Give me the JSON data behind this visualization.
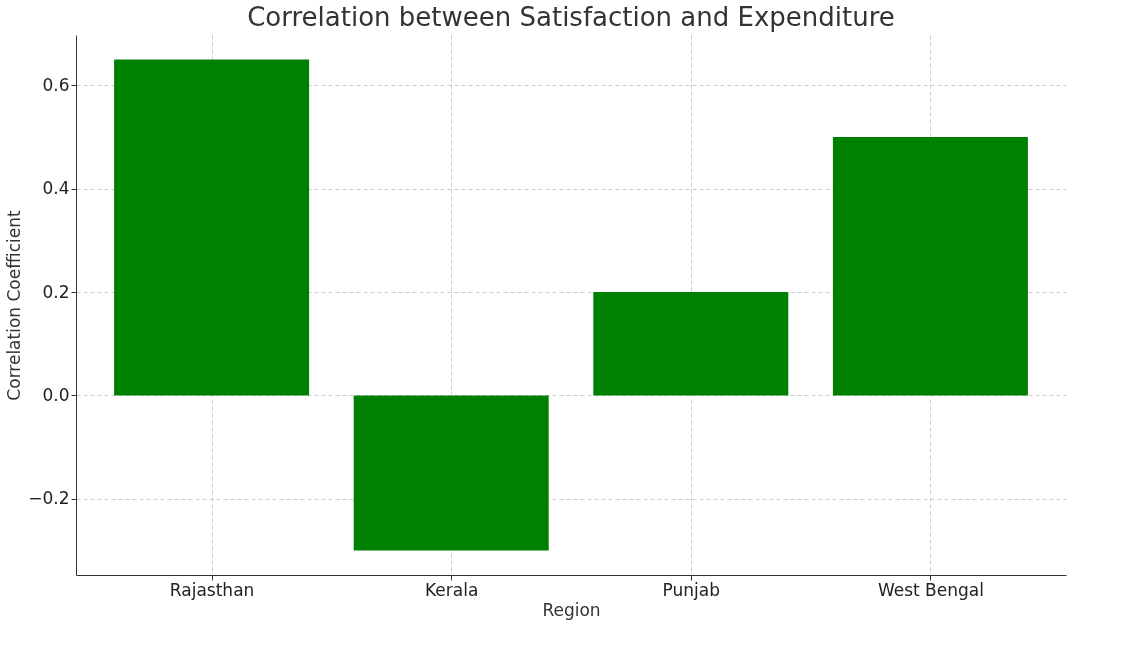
{
  "chart_data": {
    "type": "bar",
    "title": "Correlation between Satisfaction and Expenditure",
    "xlabel": "Region",
    "ylabel": "Correlation Coefficient",
    "categories": [
      "Rajasthan",
      "Kerala",
      "Punjab",
      "West Bengal"
    ],
    "values": [
      0.65,
      -0.3,
      0.2,
      0.5
    ],
    "color": "#008000",
    "ylim": [
      -0.3475,
      0.6975
    ],
    "yticks": [
      {
        "value": -0.2,
        "label": "−0.2"
      },
      {
        "value": 0.0,
        "label": "0.0"
      },
      {
        "value": 0.2,
        "label": "0.2"
      },
      {
        "value": 0.4,
        "label": "0.4"
      },
      {
        "value": 0.6,
        "label": "0.6"
      }
    ],
    "grid": true,
    "line_style": "dashed"
  }
}
